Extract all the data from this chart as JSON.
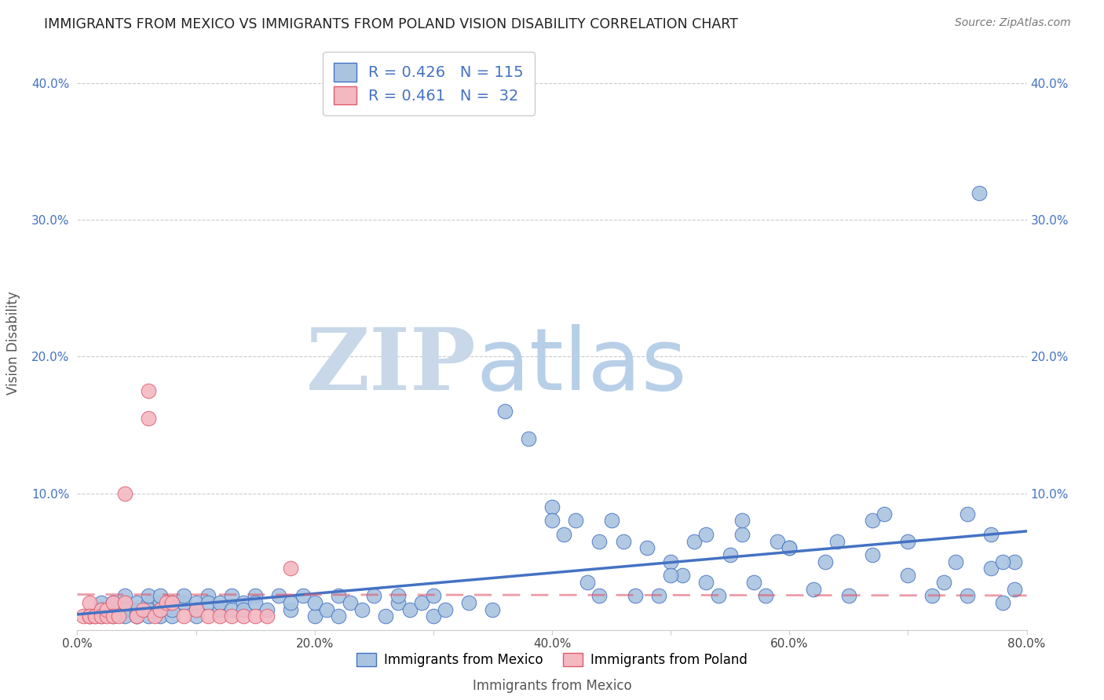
{
  "title": "IMMIGRANTS FROM MEXICO VS IMMIGRANTS FROM POLAND VISION DISABILITY CORRELATION CHART",
  "source": "Source: ZipAtlas.com",
  "xlabel_label": "Immigrants from Mexico",
  "ylabel_label": "Vision Disability",
  "legend_label1": "Immigrants from Mexico",
  "legend_label2": "Immigrants from Poland",
  "R1": 0.426,
  "N1": 115,
  "R2": 0.461,
  "N2": 32,
  "color_mexico": "#aac4e0",
  "color_poland": "#f4b8c1",
  "color_mexico_line": "#4472c4",
  "color_poland_line": "#e05a6e",
  "color_R_N": "#4472c4",
  "watermark_zip": "#c8d8e8",
  "watermark_atlas": "#b8cfe8",
  "xlim": [
    0.0,
    0.8
  ],
  "ylim": [
    0.0,
    0.42
  ],
  "xticks": [
    0.0,
    0.1,
    0.2,
    0.3,
    0.4,
    0.5,
    0.6,
    0.7,
    0.8
  ],
  "yticks": [
    0.0,
    0.1,
    0.2,
    0.3,
    0.4
  ],
  "xtick_labels": [
    "0.0%",
    "",
    "20.0%",
    "",
    "40.0%",
    "",
    "60.0%",
    "",
    "80.0%"
  ],
  "ytick_labels": [
    "",
    "10.0%",
    "20.0%",
    "30.0%",
    "40.0%"
  ],
  "mexico_x": [
    0.01,
    0.02,
    0.02,
    0.02,
    0.03,
    0.03,
    0.03,
    0.03,
    0.04,
    0.04,
    0.04,
    0.04,
    0.05,
    0.05,
    0.05,
    0.05,
    0.06,
    0.06,
    0.06,
    0.06,
    0.07,
    0.07,
    0.07,
    0.07,
    0.08,
    0.08,
    0.08,
    0.09,
    0.09,
    0.1,
    0.1,
    0.1,
    0.11,
    0.11,
    0.12,
    0.12,
    0.13,
    0.13,
    0.14,
    0.14,
    0.15,
    0.15,
    0.16,
    0.17,
    0.18,
    0.18,
    0.19,
    0.2,
    0.2,
    0.21,
    0.22,
    0.22,
    0.23,
    0.24,
    0.25,
    0.26,
    0.27,
    0.27,
    0.28,
    0.29,
    0.3,
    0.3,
    0.31,
    0.33,
    0.35,
    0.36,
    0.38,
    0.4,
    0.4,
    0.42,
    0.43,
    0.44,
    0.45,
    0.46,
    0.48,
    0.49,
    0.5,
    0.51,
    0.52,
    0.53,
    0.54,
    0.55,
    0.56,
    0.57,
    0.58,
    0.59,
    0.6,
    0.62,
    0.63,
    0.65,
    0.67,
    0.68,
    0.7,
    0.72,
    0.74,
    0.75,
    0.76,
    0.77,
    0.78,
    0.79,
    0.5,
    0.53,
    0.56,
    0.6,
    0.64,
    0.67,
    0.7,
    0.73,
    0.75,
    0.77,
    0.78,
    0.79,
    0.41,
    0.44,
    0.47
  ],
  "mexico_y": [
    0.01,
    0.01,
    0.02,
    0.015,
    0.01,
    0.02,
    0.015,
    0.02,
    0.015,
    0.02,
    0.01,
    0.025,
    0.01,
    0.015,
    0.02,
    0.01,
    0.02,
    0.015,
    0.025,
    0.01,
    0.02,
    0.01,
    0.015,
    0.025,
    0.02,
    0.01,
    0.015,
    0.02,
    0.025,
    0.015,
    0.02,
    0.01,
    0.025,
    0.02,
    0.015,
    0.02,
    0.015,
    0.025,
    0.02,
    0.015,
    0.025,
    0.02,
    0.015,
    0.025,
    0.015,
    0.02,
    0.025,
    0.01,
    0.02,
    0.015,
    0.025,
    0.01,
    0.02,
    0.015,
    0.025,
    0.01,
    0.02,
    0.025,
    0.015,
    0.02,
    0.01,
    0.025,
    0.015,
    0.02,
    0.015,
    0.16,
    0.14,
    0.09,
    0.08,
    0.08,
    0.035,
    0.025,
    0.08,
    0.065,
    0.06,
    0.025,
    0.05,
    0.04,
    0.065,
    0.035,
    0.025,
    0.055,
    0.07,
    0.035,
    0.025,
    0.065,
    0.06,
    0.03,
    0.05,
    0.025,
    0.08,
    0.085,
    0.065,
    0.025,
    0.05,
    0.085,
    0.32,
    0.07,
    0.02,
    0.05,
    0.04,
    0.07,
    0.08,
    0.06,
    0.065,
    0.055,
    0.04,
    0.035,
    0.025,
    0.045,
    0.05,
    0.03,
    0.07,
    0.065,
    0.025
  ],
  "poland_x": [
    0.005,
    0.01,
    0.01,
    0.01,
    0.015,
    0.015,
    0.02,
    0.02,
    0.025,
    0.025,
    0.03,
    0.03,
    0.035,
    0.04,
    0.04,
    0.05,
    0.055,
    0.06,
    0.06,
    0.065,
    0.07,
    0.075,
    0.08,
    0.09,
    0.1,
    0.11,
    0.12,
    0.13,
    0.14,
    0.15,
    0.16,
    0.18
  ],
  "poland_y": [
    0.01,
    0.01,
    0.02,
    0.01,
    0.01,
    0.01,
    0.015,
    0.01,
    0.01,
    0.015,
    0.02,
    0.01,
    0.01,
    0.1,
    0.02,
    0.01,
    0.015,
    0.175,
    0.155,
    0.01,
    0.015,
    0.02,
    0.02,
    0.01,
    0.015,
    0.01,
    0.01,
    0.01,
    0.01,
    0.01,
    0.01,
    0.045
  ],
  "background_color": "#ffffff",
  "grid_color": "#cccccc"
}
